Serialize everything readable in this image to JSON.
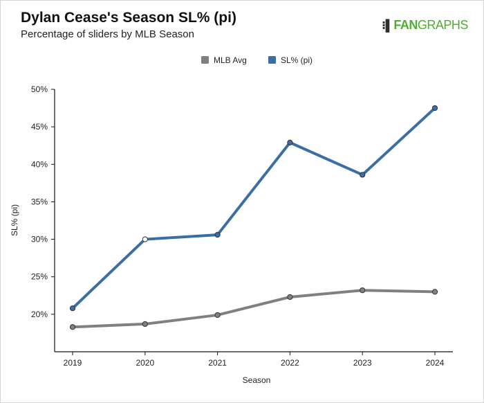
{
  "header": {
    "title": "Dylan Cease's Season SL% (pi)",
    "subtitle": "Percentage of sliders by MLB Season",
    "logo_fan": "FAN",
    "logo_graphs": "GRAPHS"
  },
  "colors": {
    "mlb_avg": "#808080",
    "sl_pct": "#3a6ea5",
    "marker_stroke": "#333333"
  },
  "chart_data": {
    "type": "line",
    "title": "Dylan Cease's Season SL% (pi)",
    "subtitle": "Percentage of sliders by MLB Season",
    "xlabel": "Season",
    "ylabel": "SL% (pi)",
    "x": [
      "2019",
      "2020",
      "2021",
      "2022",
      "2023",
      "2024"
    ],
    "ylim": [
      15,
      50
    ],
    "yticks": [
      20,
      25,
      30,
      35,
      40,
      45,
      50
    ],
    "ytick_labels": [
      "20%",
      "25%",
      "30%",
      "35%",
      "40%",
      "45%",
      "50%"
    ],
    "legend_position": "top-center",
    "series": [
      {
        "name": "MLB Avg",
        "values": [
          18.3,
          18.7,
          19.9,
          22.3,
          23.2,
          23.0
        ]
      },
      {
        "name": "SL% (pi)",
        "values": [
          20.8,
          30.0,
          30.6,
          42.9,
          38.6,
          47.5
        ]
      }
    ],
    "hollow_points": [
      {
        "series": 1,
        "index": 1
      }
    ]
  }
}
